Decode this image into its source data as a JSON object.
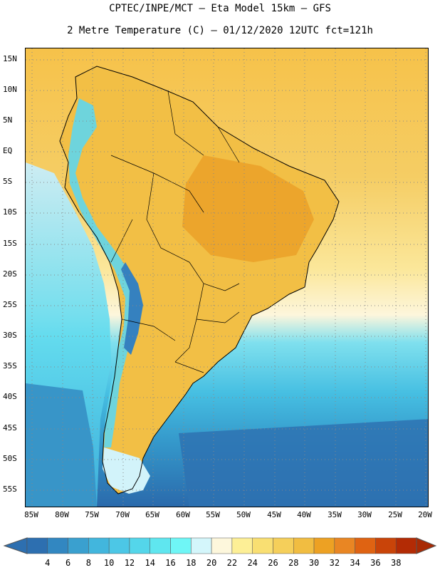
{
  "header": {
    "line1": "CPTEC/INPE/MCT –  Eta Model 15km – GFS",
    "line2": "2 Metre Temperature (C) – 01/12/2020 12UTC fct=121h"
  },
  "map": {
    "region": "South America",
    "lat_labels": [
      "15N",
      "10N",
      "5N",
      "EQ",
      "5S",
      "10S",
      "15S",
      "20S",
      "25S",
      "30S",
      "35S",
      "40S",
      "45S",
      "50S",
      "55S"
    ],
    "lon_labels": [
      "85W",
      "80W",
      "75W",
      "70W",
      "65W",
      "60W",
      "55W",
      "50W",
      "45W",
      "40W",
      "35W",
      "30W",
      "25W",
      "20W"
    ],
    "ocean_color": "#4fb4dc",
    "land_color": "#f2bf45",
    "grid_style": "dotted"
  },
  "colorbar": {
    "levels": [
      "4",
      "6",
      "8",
      "10",
      "12",
      "14",
      "16",
      "18",
      "20",
      "22",
      "24",
      "26",
      "28",
      "30",
      "32",
      "34",
      "36",
      "38"
    ],
    "colors": [
      "#2d6fb0",
      "#3287c1",
      "#3aa0cf",
      "#42b6dd",
      "#4cc7e6",
      "#54d6ea",
      "#5fe6ef",
      "#6ff6f6",
      "#d4f6fb",
      "#fdf7dc",
      "#fdef96",
      "#f9df72",
      "#f5cf5a",
      "#f1bd41",
      "#eda123",
      "#e98623",
      "#df6312",
      "#c94409",
      "#b32b05"
    ]
  }
}
